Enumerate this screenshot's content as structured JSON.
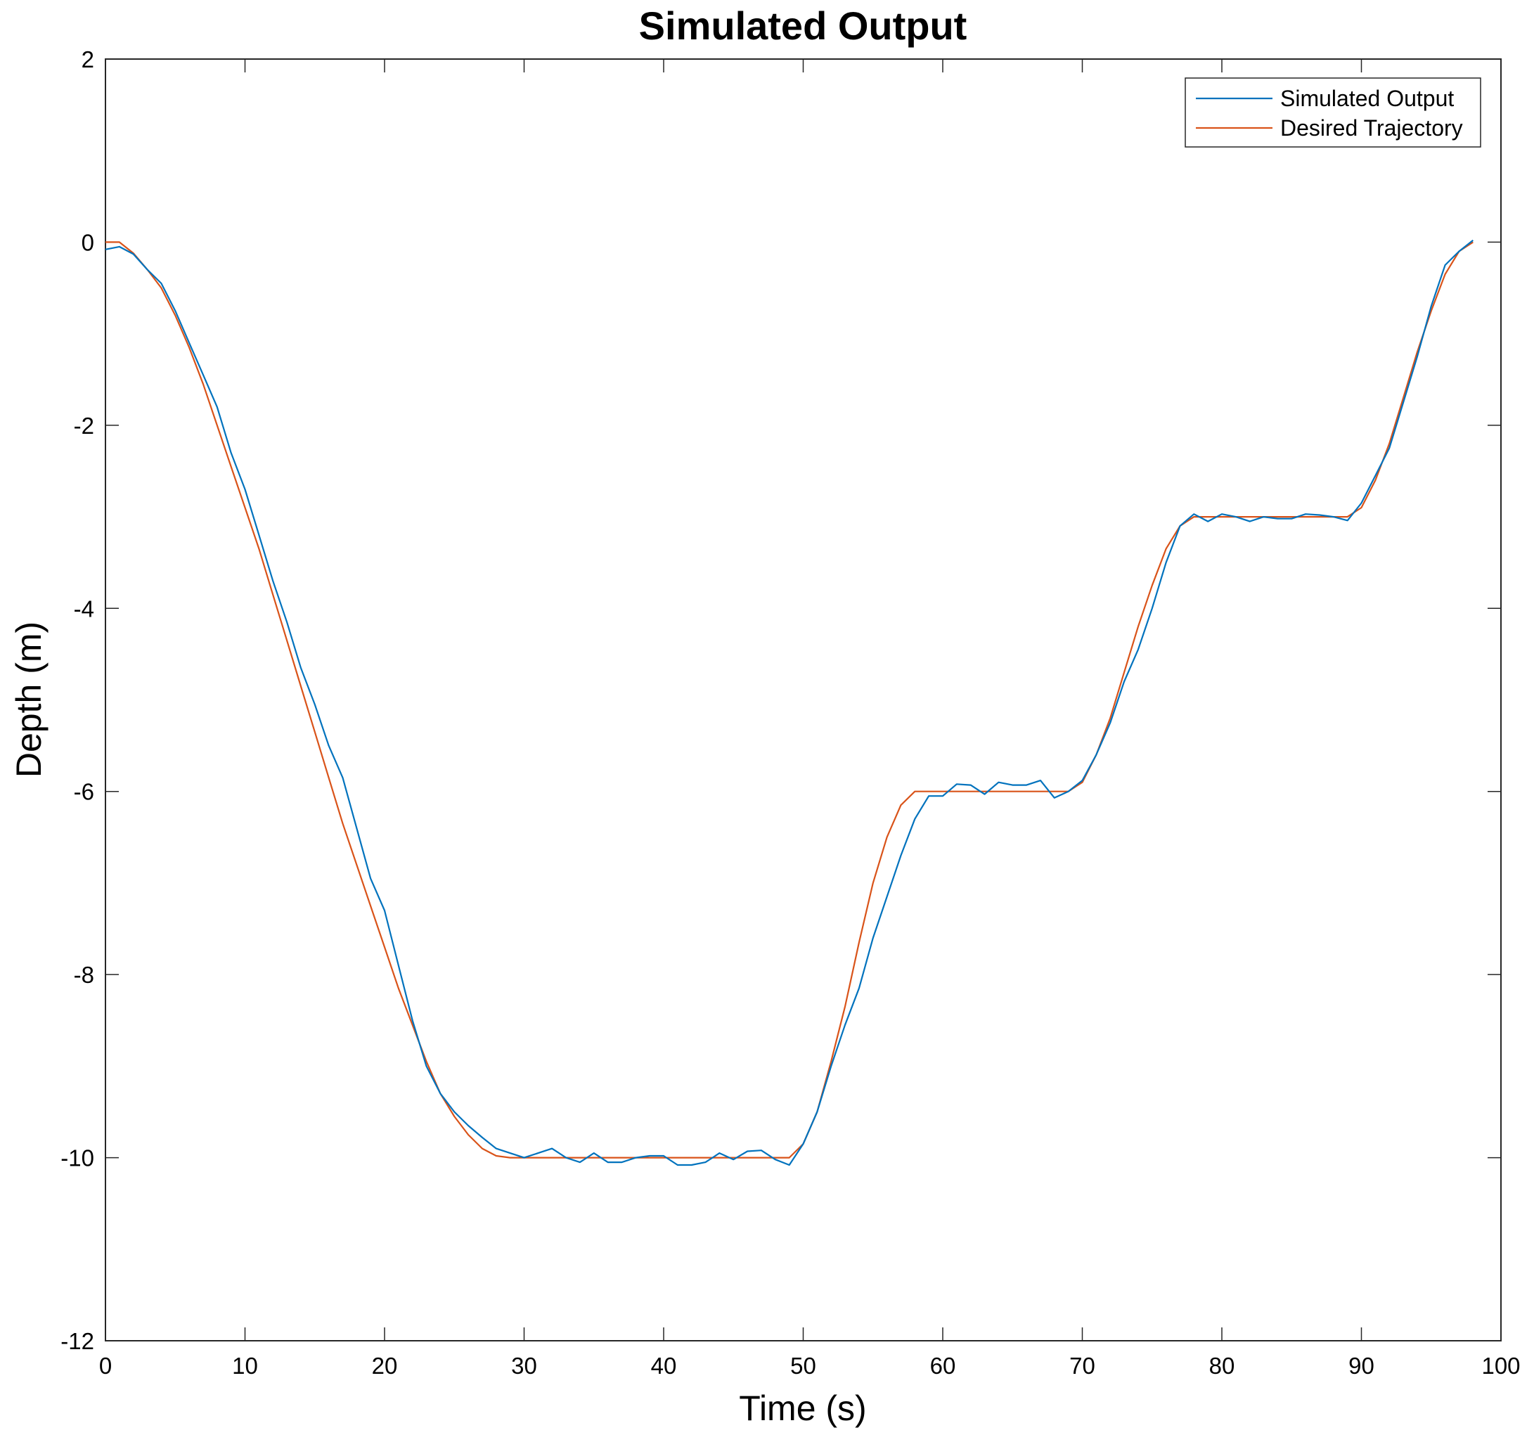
{
  "chart_data": {
    "type": "line",
    "title": "Simulated Output",
    "xlabel": "Time (s)",
    "ylabel": "Depth (m)",
    "xlim": [
      0,
      100
    ],
    "ylim": [
      -12,
      2
    ],
    "xticks": [
      0,
      10,
      20,
      30,
      40,
      50,
      60,
      70,
      80,
      90,
      100
    ],
    "yticks": [
      2,
      0,
      -2,
      -4,
      -6,
      -8,
      -10,
      -12
    ],
    "grid": false,
    "legend_position": "top-right",
    "series": [
      {
        "name": "Simulated Output",
        "color": "#0072BD",
        "x": [
          0,
          1,
          2,
          3,
          4,
          5,
          6,
          7,
          8,
          9,
          10,
          11,
          12,
          13,
          14,
          15,
          16,
          17,
          18,
          19,
          20,
          21,
          22,
          23,
          24,
          25,
          26,
          27,
          28,
          29,
          30,
          31,
          32,
          33,
          34,
          35,
          36,
          37,
          38,
          39,
          40,
          41,
          42,
          43,
          44,
          45,
          46,
          47,
          48,
          49,
          50,
          51,
          52,
          53,
          54,
          55,
          56,
          57,
          58,
          59,
          60,
          61,
          62,
          63,
          64,
          65,
          66,
          67,
          68,
          69,
          70,
          71,
          72,
          73,
          74,
          75,
          76,
          77,
          78,
          79,
          80,
          81,
          82,
          83,
          84,
          85,
          86,
          87,
          88,
          89,
          90,
          91,
          92,
          93,
          94,
          95,
          96,
          97,
          98
        ],
        "y": [
          -0.08,
          -0.05,
          -0.13,
          -0.3,
          -0.45,
          -0.75,
          -1.1,
          -1.45,
          -1.8,
          -2.3,
          -2.7,
          -3.2,
          -3.7,
          -4.15,
          -4.65,
          -5.05,
          -5.5,
          -5.85,
          -6.4,
          -6.95,
          -7.3,
          -7.9,
          -8.5,
          -9.0,
          -9.3,
          -9.5,
          -9.65,
          -9.78,
          -9.9,
          -9.95,
          -10.0,
          -9.95,
          -9.9,
          -10.0,
          -10.05,
          -9.95,
          -10.05,
          -10.05,
          -10.0,
          -9.98,
          -9.98,
          -10.08,
          -10.08,
          -10.05,
          -9.95,
          -10.02,
          -9.93,
          -9.92,
          -10.02,
          -10.08,
          -9.85,
          -9.5,
          -9.0,
          -8.55,
          -8.15,
          -7.6,
          -7.15,
          -6.7,
          -6.3,
          -6.05,
          -6.05,
          -5.92,
          -5.93,
          -6.03,
          -5.9,
          -5.93,
          -5.93,
          -5.88,
          -6.07,
          -6.0,
          -5.88,
          -5.6,
          -5.25,
          -4.8,
          -4.45,
          -4.0,
          -3.5,
          -3.1,
          -2.97,
          -3.05,
          -2.97,
          -3.0,
          -3.05,
          -3.0,
          -3.02,
          -3.02,
          -2.97,
          -2.98,
          -3.0,
          -3.04,
          -2.85,
          -2.55,
          -2.25,
          -1.75,
          -1.25,
          -0.7,
          -0.25,
          -0.1,
          0.02
        ]
      },
      {
        "name": "Desired Trajectory",
        "color": "#D95319",
        "x": [
          0,
          1,
          2,
          3,
          4,
          5,
          6,
          7,
          8,
          9,
          10,
          11,
          12,
          13,
          14,
          15,
          16,
          17,
          18,
          19,
          20,
          21,
          22,
          23,
          24,
          25,
          26,
          27,
          28,
          29,
          30,
          31,
          32,
          33,
          34,
          35,
          36,
          37,
          38,
          39,
          40,
          41,
          42,
          43,
          44,
          45,
          46,
          47,
          48,
          49,
          50,
          51,
          52,
          53,
          54,
          55,
          56,
          57,
          58,
          59,
          60,
          61,
          62,
          63,
          64,
          65,
          66,
          67,
          68,
          69,
          70,
          71,
          72,
          73,
          74,
          75,
          76,
          77,
          78,
          79,
          80,
          81,
          82,
          83,
          84,
          85,
          86,
          87,
          88,
          89,
          90,
          91,
          92,
          93,
          94,
          95,
          96,
          97,
          98
        ],
        "y": [
          0.0,
          0.0,
          -0.12,
          -0.3,
          -0.5,
          -0.8,
          -1.15,
          -1.55,
          -2.0,
          -2.45,
          -2.9,
          -3.35,
          -3.85,
          -4.35,
          -4.85,
          -5.35,
          -5.85,
          -6.35,
          -6.8,
          -7.25,
          -7.7,
          -8.15,
          -8.55,
          -8.95,
          -9.3,
          -9.55,
          -9.75,
          -9.9,
          -9.98,
          -10.0,
          -10.0,
          -10.0,
          -10.0,
          -10.0,
          -10.0,
          -10.0,
          -10.0,
          -10.0,
          -10.0,
          -10.0,
          -10.0,
          -10.0,
          -10.0,
          -10.0,
          -10.0,
          -10.0,
          -10.0,
          -10.0,
          -10.0,
          -10.0,
          -9.85,
          -9.5,
          -8.95,
          -8.35,
          -7.65,
          -7.0,
          -6.5,
          -6.15,
          -6.0,
          -6.0,
          -6.0,
          -6.0,
          -6.0,
          -6.0,
          -6.0,
          -6.0,
          -6.0,
          -6.0,
          -6.0,
          -6.0,
          -5.9,
          -5.6,
          -5.2,
          -4.7,
          -4.2,
          -3.75,
          -3.35,
          -3.1,
          -3.0,
          -3.0,
          -3.0,
          -3.0,
          -3.0,
          -3.0,
          -3.0,
          -3.0,
          -3.0,
          -3.0,
          -3.0,
          -3.0,
          -2.9,
          -2.6,
          -2.2,
          -1.7,
          -1.2,
          -0.75,
          -0.35,
          -0.1,
          0.0
        ]
      }
    ]
  }
}
